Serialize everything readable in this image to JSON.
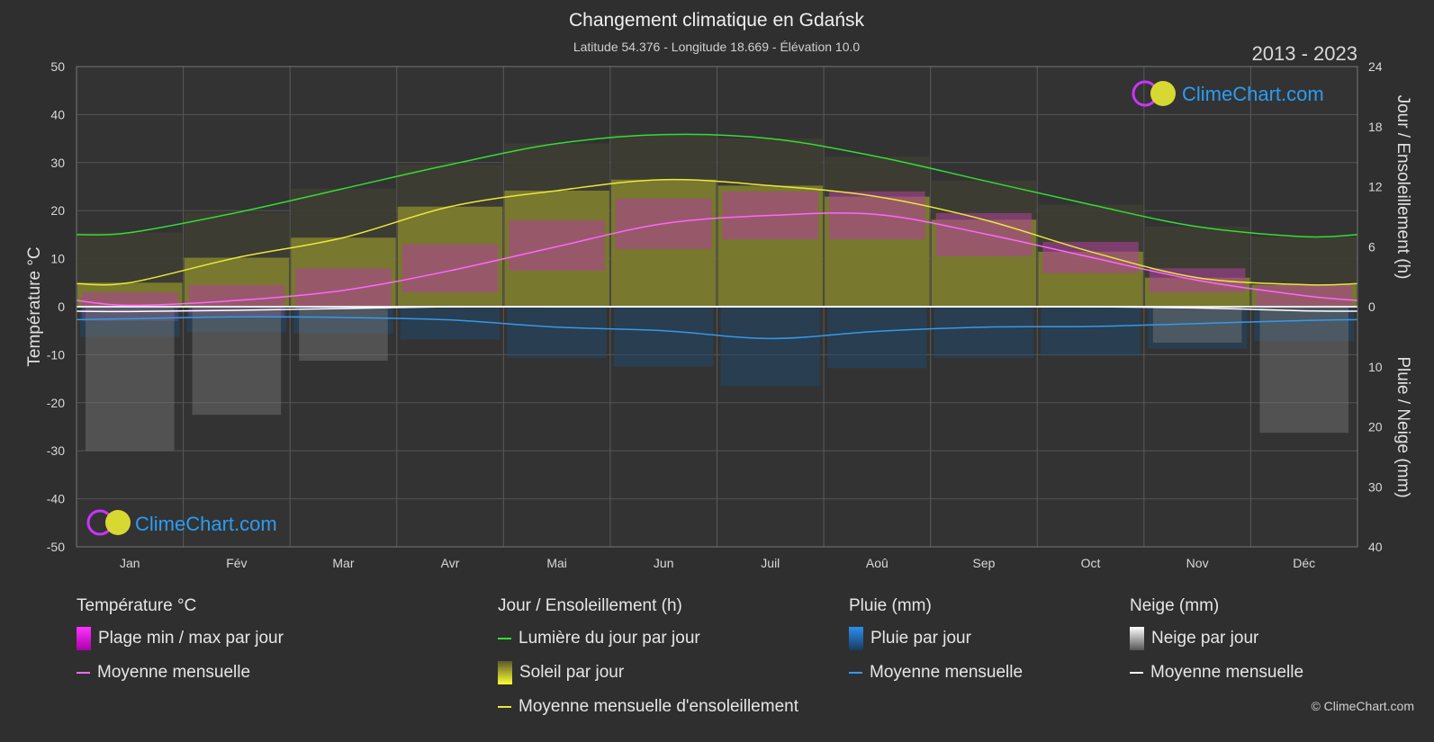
{
  "header": {
    "title": "Changement climatique en Gdańsk",
    "subtitle": "Latitude 54.376 - Longitude 18.669 - Élévation 10.0",
    "years": "2013 - 2023"
  },
  "brand": {
    "name": "ClimeChart.com",
    "copyright": "© ClimeChart.com"
  },
  "chart_data": {
    "type": "area",
    "months": [
      "Jan",
      "Fév",
      "Mar",
      "Avr",
      "Mai",
      "Jun",
      "Juil",
      "Aoû",
      "Sep",
      "Oct",
      "Nov",
      "Déc"
    ],
    "left_axis": {
      "label": "Température °C",
      "ylim": [
        -50,
        50
      ],
      "ticks": [
        50,
        40,
        30,
        20,
        10,
        0,
        -10,
        -20,
        -30,
        -40,
        -50
      ]
    },
    "right_axis_top": {
      "label": "Jour / Ensoleillement (h)",
      "ylim": [
        0,
        24
      ],
      "ticks": [
        24,
        18,
        12,
        6,
        0
      ]
    },
    "right_axis_bottom": {
      "label": "Pluie / Neige (mm)",
      "ylim": [
        0,
        40
      ],
      "ticks": [
        0,
        10,
        20,
        30,
        40
      ]
    },
    "series": [
      {
        "name": "Lumière du jour par jour",
        "unit": "h",
        "color": "#33dd33",
        "values": [
          7.4,
          9.4,
          11.8,
          14.2,
          16.3,
          17.2,
          16.8,
          15.0,
          12.6,
          10.2,
          8.0,
          7.0
        ]
      },
      {
        "name": "Moyenne mensuelle d'ensoleillement",
        "unit": "h",
        "color": "#e8e83a",
        "values": [
          2.4,
          4.9,
          6.9,
          10.0,
          11.6,
          12.7,
          12.1,
          11.0,
          8.7,
          5.5,
          2.9,
          2.2
        ]
      },
      {
        "name": "Soleil par jour",
        "unit": "h",
        "color": "#b5b53a",
        "values": [
          2.4,
          4.9,
          6.9,
          10.0,
          11.6,
          12.7,
          12.1,
          11.0,
          8.7,
          5.5,
          2.9,
          2.2
        ]
      },
      {
        "name": "Moyenne mensuelle",
        "group": "Température °C",
        "unit": "°C",
        "color": "#ff66ff",
        "values": [
          0.3,
          1.3,
          3.4,
          7.5,
          12.5,
          17.3,
          19.0,
          19.2,
          15.2,
          10.3,
          5.5,
          2.3
        ]
      },
      {
        "name": "Plage min / max par jour",
        "group": "Température °C",
        "unit": "°C",
        "color": "#cc33cc",
        "min": [
          -3.0,
          -2.0,
          -0.5,
          3.0,
          7.5,
          12.0,
          14.0,
          14.0,
          10.5,
          7.0,
          3.0,
          0.0
        ],
        "max": [
          3.0,
          4.5,
          8.0,
          13.0,
          18.0,
          22.5,
          24.0,
          24.0,
          19.5,
          13.5,
          8.0,
          4.5
        ]
      },
      {
        "name": "Moyenne mensuelle",
        "group": "Pluie (mm)",
        "unit": "mm",
        "color": "#3399ee",
        "values": [
          2.0,
          1.7,
          1.8,
          2.2,
          3.4,
          4.0,
          5.3,
          4.1,
          3.4,
          3.3,
          2.8,
          2.3
        ]
      },
      {
        "name": "Moyenne mensuelle",
        "group": "Neige (mm)",
        "unit": "mm",
        "color": "#ffffff",
        "values": [
          0.8,
          0.6,
          0.3,
          0.0,
          0.0,
          0.0,
          0.0,
          0.0,
          0.0,
          0.0,
          0.2,
          0.7
        ]
      }
    ],
    "grid": true
  },
  "legend": {
    "temperature": {
      "title": "Température °C",
      "items": [
        "Plage min / max par jour",
        "Moyenne mensuelle"
      ]
    },
    "sun": {
      "title": "Jour / Ensoleillement (h)",
      "items": [
        "Lumière du jour par jour",
        "Soleil par jour",
        "Moyenne mensuelle d'ensoleillement"
      ]
    },
    "rain": {
      "title": "Pluie (mm)",
      "items": [
        "Pluie par jour",
        "Moyenne mensuelle"
      ]
    },
    "snow": {
      "title": "Neige (mm)",
      "items": [
        "Neige par jour",
        "Moyenne mensuelle"
      ]
    }
  },
  "colors": {
    "background": "#2f2f2f",
    "daylight": "#33dd33",
    "sunshine_mean": "#e8e83a",
    "temp_mean": "#ff66ff",
    "rain_mean": "#3399ee",
    "snow_mean": "#ffffff"
  }
}
